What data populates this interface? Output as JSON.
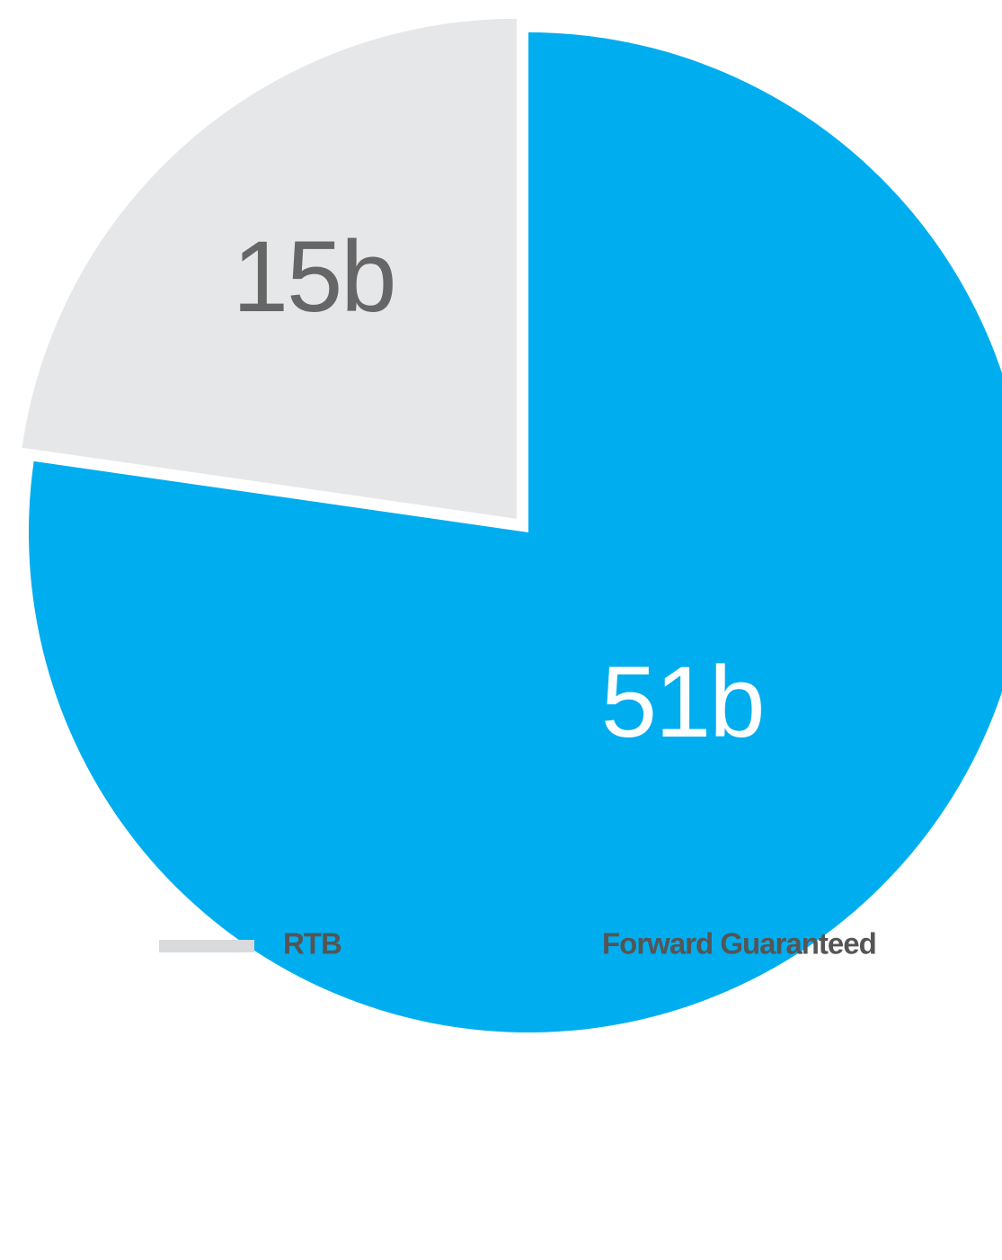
{
  "chart_data": {
    "type": "pie",
    "categories": [
      "RTB",
      "Forward Guaranteed"
    ],
    "values": [
      15,
      51
    ],
    "value_labels": [
      "15b",
      "51b"
    ],
    "colors": [
      "#e6e7e9",
      "#00aeef"
    ],
    "label_colors": [
      "#666666",
      "#ffffff"
    ]
  }
}
